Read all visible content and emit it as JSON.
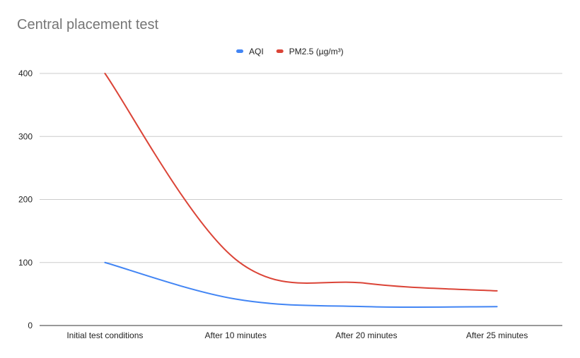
{
  "chart_data": {
    "type": "line",
    "title": "Central placement test",
    "xlabel": "",
    "ylabel": "",
    "categories": [
      "Initial test conditions",
      "After 10 minutes",
      "After 20 minutes",
      "After 25 minutes"
    ],
    "ylim": [
      0,
      400
    ],
    "yticks": [
      0,
      100,
      200,
      300,
      400
    ],
    "grid": true,
    "legend_position": "top",
    "smooth": true,
    "series": [
      {
        "name": "AQI",
        "color": "#4285f4",
        "values": [
          100,
          42,
          30,
          30
        ]
      },
      {
        "name": "PM2.5 (µg/m³)",
        "color": "#db4437",
        "values": [
          400,
          105,
          67,
          55
        ]
      }
    ]
  }
}
